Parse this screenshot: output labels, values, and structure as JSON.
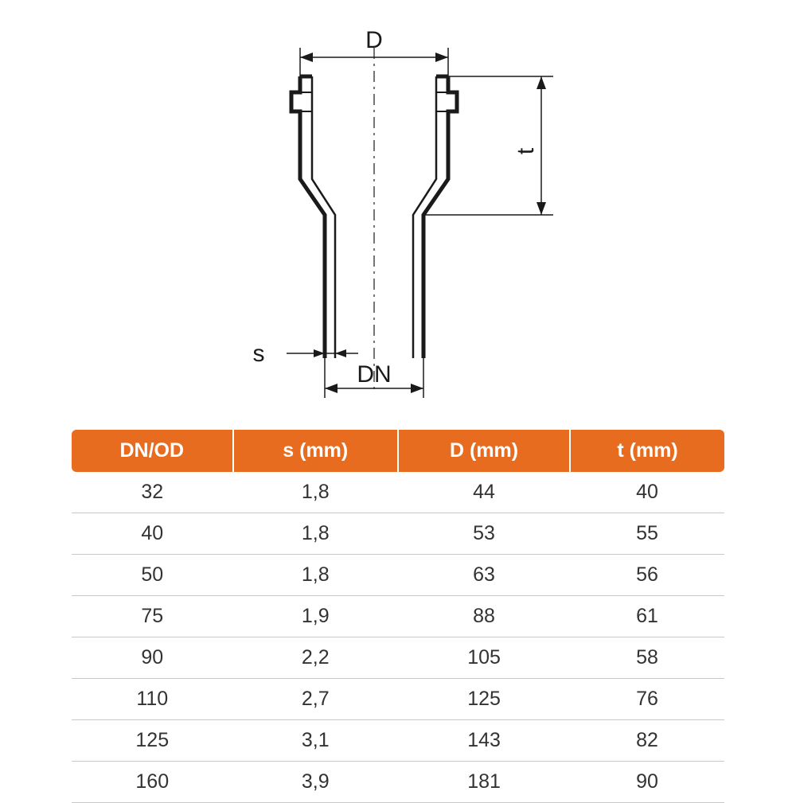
{
  "diagram": {
    "labels": {
      "D": "D",
      "t": "t",
      "s": "s",
      "DN": "DN"
    },
    "stroke_color": "#1a1a1a",
    "centerline_color": "#1a1a1a",
    "text_color": "#1a1a1a",
    "main_stroke_width": 3,
    "dim_stroke_width": 1.5
  },
  "table": {
    "header_bg": "#e86c1f",
    "header_fg": "#ffffff",
    "row_border": "#c8c8c8",
    "cell_fg": "#333333",
    "columns": [
      "DN/OD",
      "s (mm)",
      "D (mm)",
      "t (mm)"
    ],
    "rows": [
      [
        "32",
        "1,8",
        "44",
        "40"
      ],
      [
        "40",
        "1,8",
        "53",
        "55"
      ],
      [
        "50",
        "1,8",
        "63",
        "56"
      ],
      [
        "75",
        "1,9",
        "88",
        "61"
      ],
      [
        "90",
        "2,2",
        "105",
        "58"
      ],
      [
        "110",
        "2,7",
        "125",
        "76"
      ],
      [
        "125",
        "3,1",
        "143",
        "82"
      ],
      [
        "160",
        "3,9",
        "181",
        "90"
      ]
    ],
    "header_fontsize": 25,
    "cell_fontsize": 25
  }
}
